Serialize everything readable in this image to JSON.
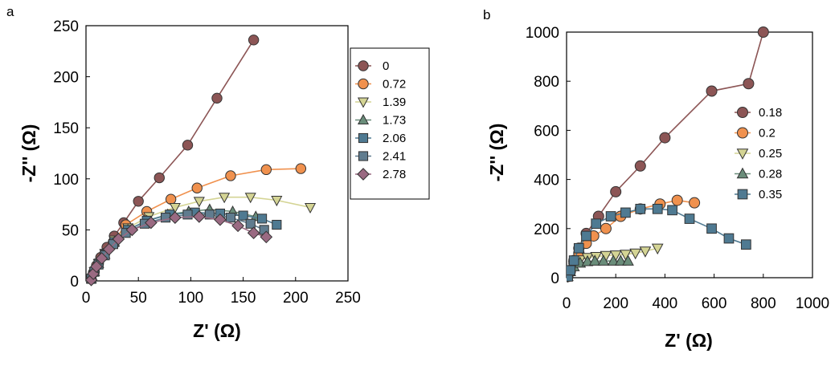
{
  "figure": {
    "panel_labels": [
      "a",
      "b"
    ]
  },
  "chart_data": [
    {
      "type": "scatter",
      "panel": "a",
      "title": "",
      "xlabel": "Z' (Ω)",
      "ylabel": "-Z'' (Ω)",
      "xlim": [
        0,
        250
      ],
      "ylim": [
        0,
        250
      ],
      "xticks": [
        0,
        50,
        100,
        150,
        200,
        250
      ],
      "yticks": [
        0,
        50,
        100,
        150,
        200,
        250
      ],
      "grid": false,
      "legend": "right-outside-box",
      "series": [
        {
          "name": "0",
          "color": "#8c5555",
          "marker": "circle",
          "points": [
            [
              5,
              2
            ],
            [
              7,
              8
            ],
            [
              10,
              15
            ],
            [
              14,
              23
            ],
            [
              20,
              33
            ],
            [
              27,
              44
            ],
            [
              36,
              57
            ],
            [
              50,
              78
            ],
            [
              70,
              101
            ],
            [
              97,
              133
            ],
            [
              125,
              179
            ],
            [
              160,
              236
            ]
          ]
        },
        {
          "name": "0.72",
          "color": "#f0914e",
          "marker": "circle",
          "points": [
            [
              5,
              2
            ],
            [
              8,
              9
            ],
            [
              12,
              17
            ],
            [
              18,
              27
            ],
            [
              26,
              38
            ],
            [
              38,
              55
            ],
            [
              58,
              68
            ],
            [
              81,
              80
            ],
            [
              106,
              91
            ],
            [
              138,
              103
            ],
            [
              172,
              109
            ],
            [
              205,
              110
            ]
          ]
        },
        {
          "name": "1.39",
          "color": "#d4d494",
          "marker": "triangle-down",
          "points": [
            [
              5,
              2
            ],
            [
              8,
              9
            ],
            [
              12,
              17
            ],
            [
              18,
              27
            ],
            [
              27,
              40
            ],
            [
              40,
              52
            ],
            [
              60,
              63
            ],
            [
              85,
              72
            ],
            [
              108,
              78
            ],
            [
              132,
              82
            ],
            [
              157,
              82
            ],
            [
              182,
              79
            ],
            [
              214,
              72
            ]
          ]
        },
        {
          "name": "1.73",
          "color": "#6a8d7a",
          "marker": "triangle-up",
          "points": [
            [
              5,
              2
            ],
            [
              8,
              9
            ],
            [
              12,
              17
            ],
            [
              18,
              26
            ],
            [
              27,
              38
            ],
            [
              40,
              50
            ],
            [
              58,
              59
            ],
            [
              78,
              65
            ],
            [
              98,
              68
            ],
            [
              118,
              70
            ],
            [
              140,
              68
            ],
            [
              162,
              63
            ]
          ]
        },
        {
          "name": "2.06",
          "color": "#4f7a92",
          "marker": "square",
          "points": [
            [
              5,
              2
            ],
            [
              8,
              9
            ],
            [
              12,
              17
            ],
            [
              18,
              26
            ],
            [
              27,
              38
            ],
            [
              40,
              50
            ],
            [
              58,
              59
            ],
            [
              80,
              65
            ],
            [
              104,
              67
            ],
            [
              128,
              66
            ],
            [
              150,
              64
            ],
            [
              168,
              61
            ],
            [
              182,
              55
            ]
          ]
        },
        {
          "name": "2.41",
          "color": "#607c8f",
          "marker": "square",
          "points": [
            [
              5,
              2
            ],
            [
              8,
              9
            ],
            [
              12,
              16
            ],
            [
              18,
              25
            ],
            [
              26,
              36
            ],
            [
              38,
              47
            ],
            [
              56,
              56
            ],
            [
              76,
              62
            ],
            [
              97,
              65
            ],
            [
              118,
              65
            ],
            [
              138,
              62
            ],
            [
              157,
              56
            ],
            [
              170,
              50
            ]
          ]
        },
        {
          "name": "2.78",
          "color": "#9a6a82",
          "marker": "diamond",
          "points": [
            [
              5,
              1
            ],
            [
              7,
              7
            ],
            [
              10,
              14
            ],
            [
              15,
              22
            ],
            [
              22,
              31
            ],
            [
              31,
              41
            ],
            [
              44,
              50
            ],
            [
              62,
              57
            ],
            [
              85,
              62
            ],
            [
              108,
              63
            ],
            [
              128,
              60
            ],
            [
              145,
              54
            ],
            [
              160,
              47
            ],
            [
              172,
              43
            ]
          ]
        }
      ]
    },
    {
      "type": "scatter",
      "panel": "b",
      "title": "",
      "xlabel": "Z' (Ω)",
      "ylabel": "-Z'' (Ω)",
      "xlim": [
        0,
        1000
      ],
      "ylim": [
        0,
        1000
      ],
      "xticks": [
        0,
        200,
        400,
        600,
        800,
        1000
      ],
      "yticks": [
        0,
        200,
        400,
        600,
        800,
        1000
      ],
      "grid": false,
      "legend": "inside-right",
      "series": [
        {
          "name": "0.18",
          "color": "#8c5555",
          "marker": "circle",
          "points": [
            [
              5,
              5
            ],
            [
              15,
              30
            ],
            [
              30,
              70
            ],
            [
              50,
              120
            ],
            [
              80,
              180
            ],
            [
              130,
              250
            ],
            [
              200,
              350
            ],
            [
              300,
              455
            ],
            [
              400,
              570
            ],
            [
              590,
              760
            ],
            [
              740,
              790
            ],
            [
              800,
              1000
            ]
          ]
        },
        {
          "name": "0.2",
          "color": "#f0914e",
          "marker": "circle",
          "points": [
            [
              5,
              5
            ],
            [
              15,
              25
            ],
            [
              30,
              60
            ],
            [
              50,
              100
            ],
            [
              80,
              140
            ],
            [
              110,
              170
            ],
            [
              160,
              200
            ],
            [
              220,
              250
            ],
            [
              300,
              280
            ],
            [
              380,
              300
            ],
            [
              450,
              315
            ],
            [
              520,
              305
            ]
          ]
        },
        {
          "name": "0.25",
          "color": "#d4d494",
          "marker": "triangle-down",
          "points": [
            [
              5,
              5
            ],
            [
              15,
              25
            ],
            [
              30,
              50
            ],
            [
              55,
              72
            ],
            [
              85,
              82
            ],
            [
              120,
              86
            ],
            [
              160,
              90
            ],
            [
              200,
              92
            ],
            [
              240,
              95
            ],
            [
              280,
              100
            ],
            [
              320,
              108
            ],
            [
              370,
              120
            ]
          ]
        },
        {
          "name": "0.28",
          "color": "#6a8d7a",
          "marker": "triangle-up",
          "points": [
            [
              5,
              5
            ],
            [
              15,
              25
            ],
            [
              30,
              45
            ],
            [
              55,
              60
            ],
            [
              85,
              66
            ],
            [
              115,
              68
            ],
            [
              150,
              68
            ],
            [
              190,
              68
            ],
            [
              220,
              68
            ],
            [
              250,
              68
            ]
          ]
        },
        {
          "name": "0.35",
          "color": "#4f7a92",
          "marker": "square",
          "points": [
            [
              5,
              5
            ],
            [
              15,
              30
            ],
            [
              30,
              70
            ],
            [
              50,
              120
            ],
            [
              80,
              170
            ],
            [
              120,
              220
            ],
            [
              180,
              250
            ],
            [
              240,
              265
            ],
            [
              300,
              280
            ],
            [
              370,
              280
            ],
            [
              430,
              275
            ],
            [
              500,
              240
            ],
            [
              590,
              200
            ],
            [
              660,
              160
            ],
            [
              730,
              135
            ]
          ]
        }
      ]
    }
  ]
}
